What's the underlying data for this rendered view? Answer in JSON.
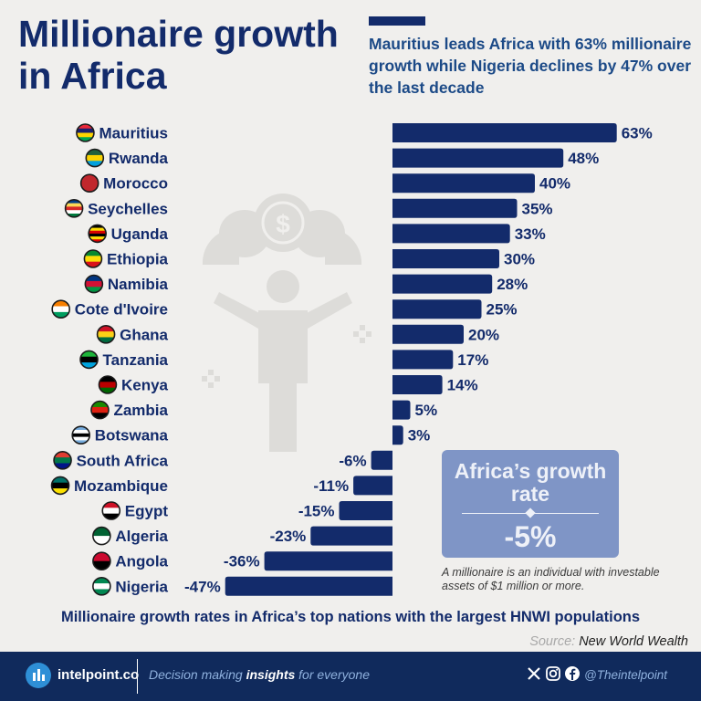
{
  "title": "Millionaire growth in Africa",
  "subtitle": "Mauritius leads Africa with 63% millionaire growth while Nigeria declines by 47% over the last decade",
  "chart_data": {
    "type": "bar",
    "orientation": "horizontal",
    "categories": [
      "Mauritius",
      "Rwanda",
      "Morocco",
      "Seychelles",
      "Uganda",
      "Ethiopia",
      "Namibia",
      "Cote d'Ivoire",
      "Ghana",
      "Tanzania",
      "Kenya",
      "Zambia",
      "Botswana",
      "South Africa",
      "Mozambique",
      "Egypt",
      "Algeria",
      "Angola",
      "Nigeria"
    ],
    "values": [
      63,
      48,
      40,
      35,
      33,
      30,
      28,
      25,
      20,
      17,
      14,
      5,
      3,
      -6,
      -11,
      -15,
      -23,
      -36,
      -47
    ],
    "value_labels": [
      "63%",
      "48%",
      "40%",
      "35%",
      "33%",
      "30%",
      "28%",
      "25%",
      "20%",
      "17%",
      "14%",
      "5%",
      "3%",
      "-6%",
      "-11%",
      "-15%",
      "-23%",
      "-36%",
      "-47%"
    ],
    "unit": "%",
    "bar_color": "#132b6b"
  },
  "africa_box": {
    "title": "Africa’s growth rate",
    "value": "-5%"
  },
  "note": "A millionaire is an individual with investable assets of $1 million or more.",
  "footnote": "Millionaire growth rates in Africa’s top nations with the largest HNWI populations",
  "source": {
    "label": "Source:",
    "value": "New World Wealth"
  },
  "footer": {
    "brand": "intelpoint.co",
    "tagline_pre": "Decision making ",
    "tagline_bold": "insights",
    "tagline_post": " for everyone",
    "handle": "@Theintelpoint",
    "icons": [
      "x-icon",
      "instagram-icon",
      "facebook-icon"
    ]
  },
  "colors": {
    "background": "#f0efed",
    "primary": "#132b6b",
    "subtitle": "#1c4a87",
    "box": "#7f95c6",
    "footer": "#102a5c",
    "footer_accent": "#2e8fd6"
  }
}
